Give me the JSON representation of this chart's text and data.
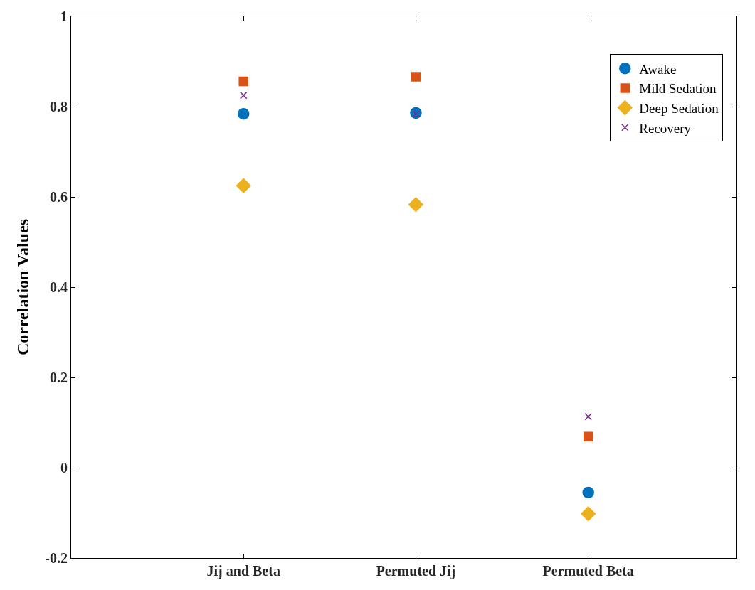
{
  "chart_data": {
    "type": "scatter",
    "ylabel": "Correlation Values",
    "categories": [
      "Jij and Beta",
      "Permuted Jij",
      "Permuted Beta"
    ],
    "series": [
      {
        "name": "Awake",
        "color": "#0072bd",
        "marker": "circle",
        "values": [
          0.784,
          0.786,
          -0.055
        ]
      },
      {
        "name": "Mild Sedation",
        "color": "#d95319",
        "marker": "square",
        "values": [
          0.856,
          0.866,
          0.069
        ]
      },
      {
        "name": "Deep Sedation",
        "color": "#edb120",
        "marker": "diamond",
        "values": [
          0.625,
          0.583,
          -0.102
        ]
      },
      {
        "name": "Recovery",
        "color": "#7e2f8e",
        "marker": "cross",
        "values": [
          0.825,
          0.784,
          0.113
        ]
      }
    ],
    "ylim": [
      -0.2,
      1
    ],
    "yticks": [
      -0.2,
      0,
      0.2,
      0.4,
      0.6,
      0.8,
      1
    ],
    "legend": "top right"
  }
}
